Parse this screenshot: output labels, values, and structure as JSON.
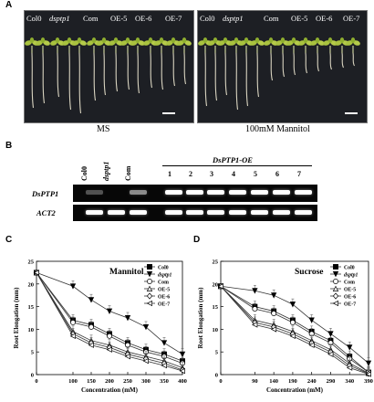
{
  "panels": {
    "a": {
      "letter": "A",
      "left": {
        "labels": [
          "Col0",
          "dsptp1",
          "Com",
          "OE-5",
          "OE-6",
          "OE-7"
        ],
        "italic": [
          false,
          true,
          false,
          false,
          false,
          false
        ],
        "condition": "MS"
      },
      "right": {
        "labels": [
          "Col0",
          "dsptp1",
          "Com",
          "OE-5",
          "OE-6",
          "OE-7"
        ],
        "italic": [
          false,
          true,
          false,
          false,
          false,
          false
        ],
        "condition": "100mM Mannitol"
      }
    },
    "b": {
      "letter": "B",
      "lanes": [
        "Col0",
        "dsptp1",
        "Com"
      ],
      "oe_header": "DsPTP1-OE",
      "oe_lanes": [
        "1",
        "2",
        "3",
        "4",
        "5",
        "6",
        "7"
      ],
      "rows": [
        "DsPTP1",
        "ACT2"
      ],
      "dsptp1_intensity": [
        0.25,
        0.0,
        0.55,
        1,
        1,
        1,
        1,
        1,
        1,
        1
      ],
      "act2_intensity": [
        1,
        1,
        1,
        1,
        1,
        1,
        1,
        1,
        1,
        1
      ]
    },
    "c": {
      "letter": "C"
    },
    "d": {
      "letter": "D"
    }
  },
  "chart_data": [
    {
      "type": "line",
      "title": "Mannitol",
      "xlabel": "Concentration (mM)",
      "ylabel": "Root Elongation (mm)",
      "x": [
        0,
        100,
        150,
        200,
        250,
        300,
        350,
        400
      ],
      "xlim": [
        0,
        400
      ],
      "ylim": [
        0,
        25
      ],
      "yticks": [
        0,
        5,
        10,
        15,
        20,
        25
      ],
      "legend_position": "right",
      "series": [
        {
          "name": "Col0",
          "values": [
            22.5,
            12.0,
            11.0,
            9.0,
            7.0,
            5.5,
            4.5,
            3.0
          ],
          "marker": "square-filled"
        },
        {
          "name": "dsptp1",
          "values": [
            22.5,
            19.5,
            16.5,
            14.0,
            12.5,
            10.5,
            7.0,
            4.5
          ],
          "marker": "triangle-down-filled"
        },
        {
          "name": "Com",
          "values": [
            22.5,
            11.5,
            10.5,
            8.5,
            6.5,
            5.0,
            4.0,
            2.5
          ],
          "marker": "circle-open"
        },
        {
          "name": "OE-5",
          "values": [
            22.5,
            9.5,
            7.5,
            6.5,
            5.0,
            4.0,
            3.0,
            1.5
          ],
          "marker": "triangle-up-open"
        },
        {
          "name": "OE-6",
          "values": [
            22.5,
            9.0,
            7.0,
            6.0,
            4.5,
            3.5,
            2.5,
            1.0
          ],
          "marker": "diamond-open"
        },
        {
          "name": "OE-7",
          "values": [
            22.5,
            8.5,
            6.5,
            5.5,
            4.0,
            3.0,
            2.0,
            0.8
          ],
          "marker": "triangle-left-open"
        }
      ]
    },
    {
      "type": "line",
      "title": "Sucrose",
      "xlabel": "Concentration (mM)",
      "ylabel": "Root Elongation (mm)",
      "x": [
        0,
        90,
        140,
        190,
        240,
        290,
        340,
        390
      ],
      "xlim": [
        0,
        390
      ],
      "ylim": [
        0,
        25
      ],
      "yticks": [
        0,
        5,
        10,
        15,
        20,
        25
      ],
      "legend_position": "top-right",
      "series": [
        {
          "name": "Col0",
          "values": [
            19.5,
            15.0,
            14.0,
            12.0,
            9.5,
            7.5,
            4.0,
            0.5
          ],
          "marker": "square-filled"
        },
        {
          "name": "dsptp1",
          "values": [
            19.5,
            18.5,
            17.5,
            15.5,
            12.0,
            9.0,
            6.0,
            2.5
          ],
          "marker": "triangle-down-filled"
        },
        {
          "name": "Com",
          "values": [
            19.5,
            14.5,
            13.5,
            11.5,
            9.0,
            7.0,
            3.5,
            0.5
          ],
          "marker": "circle-open"
        },
        {
          "name": "OE-5",
          "values": [
            19.5,
            12.0,
            11.0,
            9.5,
            7.5,
            5.5,
            2.5,
            0.3
          ],
          "marker": "triangle-up-open"
        },
        {
          "name": "OE-6",
          "values": [
            19.5,
            11.5,
            10.5,
            9.0,
            7.0,
            5.0,
            2.0,
            0.2
          ],
          "marker": "diamond-open"
        },
        {
          "name": "OE-7",
          "values": [
            19.5,
            11.0,
            10.0,
            8.5,
            6.5,
            4.5,
            1.5,
            0.1
          ],
          "marker": "triangle-left-open"
        }
      ]
    }
  ]
}
